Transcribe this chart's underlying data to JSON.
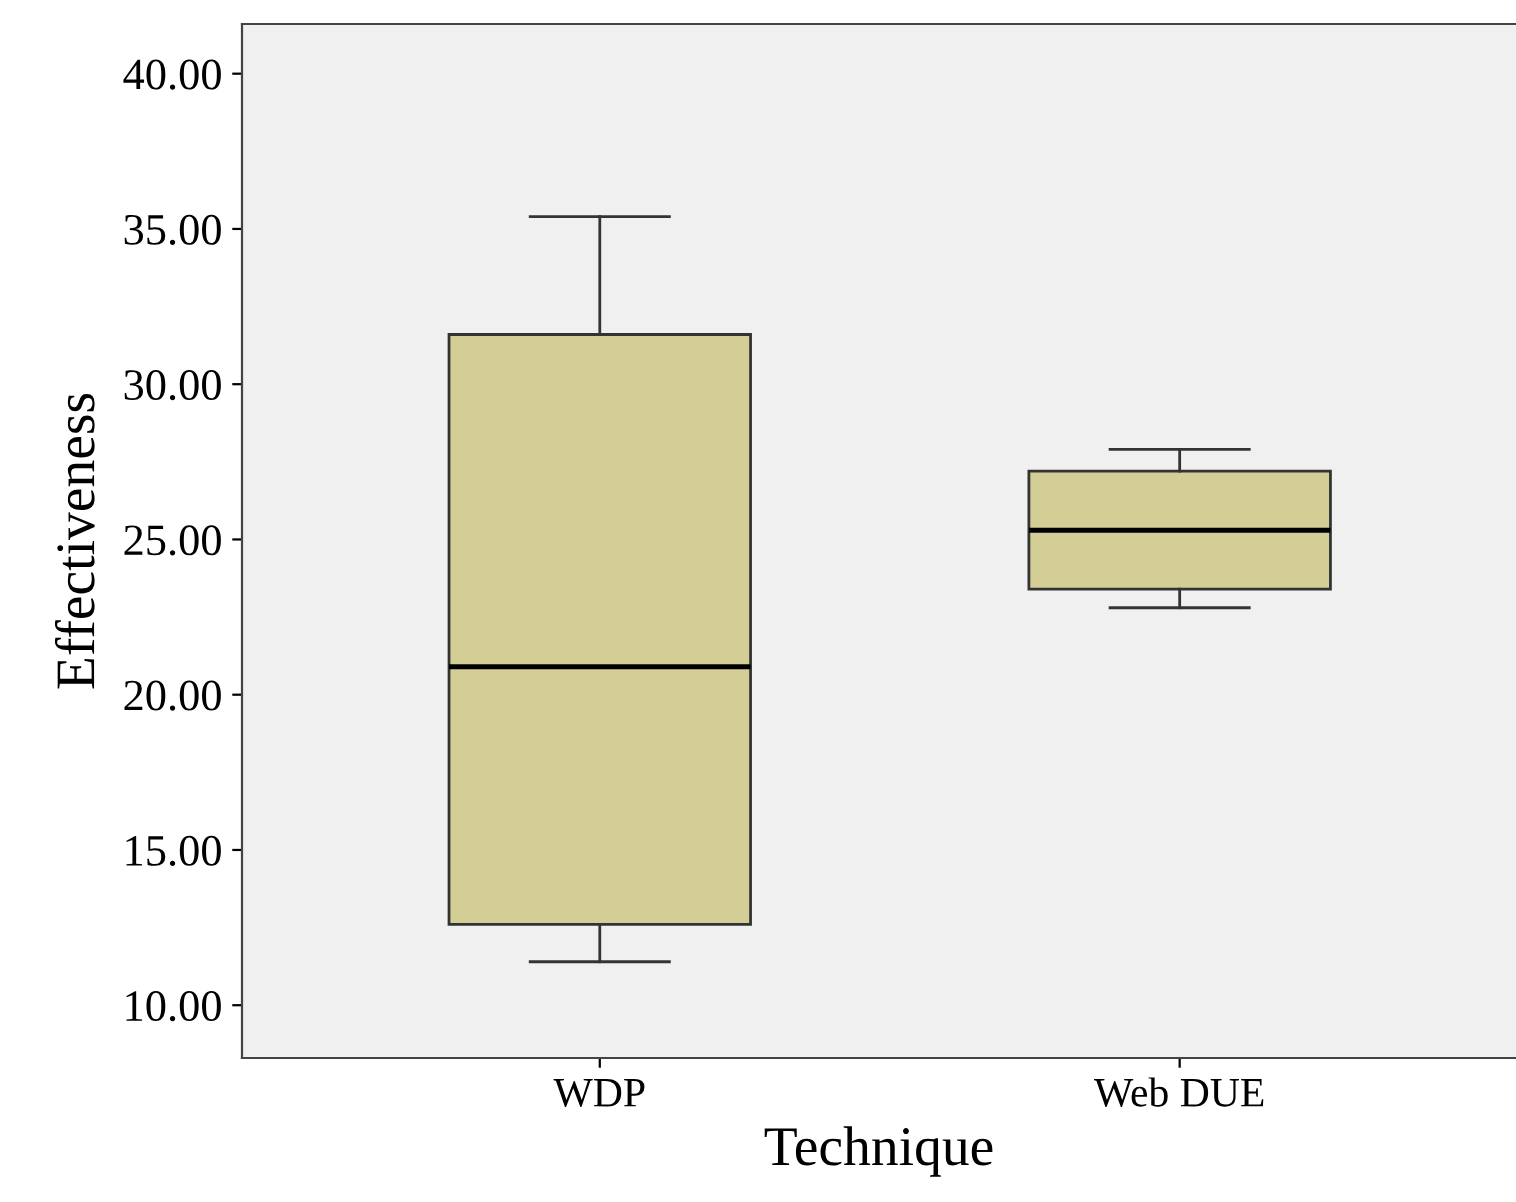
{
  "chart_data": {
    "type": "box",
    "xlabel": "Technique",
    "ylabel": "Effectiveness",
    "categories": [
      "WDP",
      "Web DUE"
    ],
    "color": "#d3cd96",
    "boxes": [
      {
        "low": 11.4,
        "q1": 12.6,
        "median": 20.9,
        "q3": 31.6,
        "high": 35.4
      },
      {
        "low": 22.8,
        "q1": 23.4,
        "median": 25.3,
        "q3": 27.2,
        "high": 27.9
      }
    ],
    "ylim": [
      8.3,
      41.6
    ],
    "yticks": [
      {
        "value": 10,
        "label": "10.00"
      },
      {
        "value": 15,
        "label": "15.00"
      },
      {
        "value": 20,
        "label": "20.00"
      },
      {
        "value": 25,
        "label": "25.00"
      },
      {
        "value": 30,
        "label": "30.00"
      },
      {
        "value": 35,
        "label": "35.00"
      },
      {
        "value": 40,
        "label": "40.00"
      }
    ],
    "grid": false
  }
}
